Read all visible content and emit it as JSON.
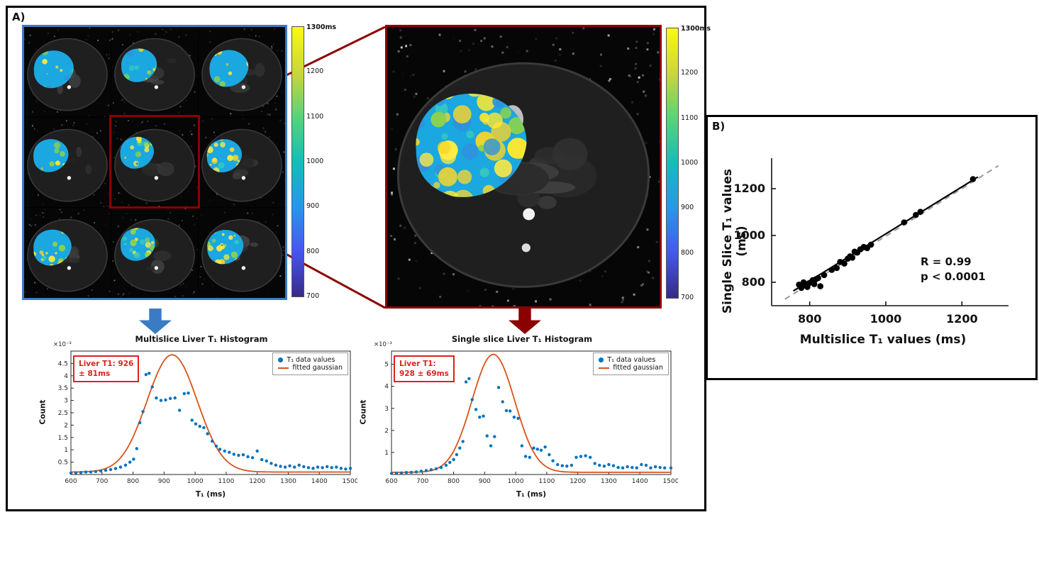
{
  "panelA": {
    "label": "A)",
    "colorbar_multislice": {
      "top_label": "1300ms",
      "ticks": [
        "1200",
        "1100",
        "1000",
        "900",
        "800",
        "700"
      ]
    },
    "colorbar_single": {
      "top_label": "1300ms",
      "ticks": [
        "1200",
        "1100",
        "1000",
        "900",
        "800",
        "700"
      ]
    }
  },
  "panelB": {
    "label": "B)"
  },
  "colors": {
    "histogram_points": "#0072BD",
    "gaussian_curve": "#D95319",
    "annotation_red": "#e02020",
    "multislice_border_blue": "#3b7bc4",
    "highlight_red": "#8b0000",
    "scatter_points": "#000000",
    "identity_line_gray": "#9a9a9a",
    "colorbar_top": "#f9fb0e",
    "colorbar_bottom": "#352a87"
  },
  "chart_data": [
    {
      "id": "multislice_histogram",
      "type": "scatter",
      "title": "Multislice Liver T₁ Histogram",
      "xlabel": "T₁ (ms)",
      "ylabel": "Count",
      "y_scale_label": "×10⁻³",
      "xlim": [
        600,
        1500
      ],
      "ylim": [
        0,
        5.0
      ],
      "xticks": [
        600,
        700,
        800,
        900,
        1000,
        1100,
        1200,
        1300,
        1400,
        1500
      ],
      "yticks": [
        0.5,
        1,
        1.5,
        2,
        2.5,
        3,
        3.5,
        4,
        4.5
      ],
      "grid": false,
      "legend_position": "top-right",
      "legend": [
        "T₁ data values",
        "fitted gaussian"
      ],
      "annotation": {
        "line1": "Liver T1: 926",
        "line2": "± 81ms"
      },
      "gaussian_fit": {
        "mean": 926,
        "sigma": 81,
        "amplitude": 4.75
      },
      "points": [
        [
          600,
          0.06
        ],
        [
          616,
          0.07
        ],
        [
          632,
          0.08
        ],
        [
          648,
          0.1
        ],
        [
          664,
          0.1
        ],
        [
          680,
          0.12
        ],
        [
          696,
          0.14
        ],
        [
          712,
          0.17
        ],
        [
          728,
          0.2
        ],
        [
          744,
          0.24
        ],
        [
          760,
          0.3
        ],
        [
          776,
          0.38
        ],
        [
          790,
          0.5
        ],
        [
          802,
          0.62
        ],
        [
          812,
          1.05
        ],
        [
          822,
          2.1
        ],
        [
          832,
          2.55
        ],
        [
          842,
          4.05
        ],
        [
          852,
          4.1
        ],
        [
          862,
          3.55
        ],
        [
          875,
          3.1
        ],
        [
          890,
          3.0
        ],
        [
          905,
          3.02
        ],
        [
          920,
          3.08
        ],
        [
          935,
          3.1
        ],
        [
          950,
          2.6
        ],
        [
          965,
          3.28
        ],
        [
          978,
          3.3
        ],
        [
          990,
          2.2
        ],
        [
          1002,
          2.05
        ],
        [
          1015,
          1.95
        ],
        [
          1028,
          1.9
        ],
        [
          1040,
          1.65
        ],
        [
          1055,
          1.35
        ],
        [
          1068,
          1.15
        ],
        [
          1080,
          1.02
        ],
        [
          1095,
          0.95
        ],
        [
          1110,
          0.9
        ],
        [
          1125,
          0.82
        ],
        [
          1140,
          0.78
        ],
        [
          1155,
          0.8
        ],
        [
          1170,
          0.72
        ],
        [
          1185,
          0.68
        ],
        [
          1200,
          0.95
        ],
        [
          1215,
          0.6
        ],
        [
          1230,
          0.55
        ],
        [
          1245,
          0.45
        ],
        [
          1260,
          0.38
        ],
        [
          1275,
          0.33
        ],
        [
          1290,
          0.3
        ],
        [
          1305,
          0.35
        ],
        [
          1320,
          0.3
        ],
        [
          1335,
          0.38
        ],
        [
          1350,
          0.32
        ],
        [
          1365,
          0.28
        ],
        [
          1380,
          0.25
        ],
        [
          1395,
          0.3
        ],
        [
          1410,
          0.28
        ],
        [
          1425,
          0.32
        ],
        [
          1440,
          0.28
        ],
        [
          1455,
          0.3
        ],
        [
          1470,
          0.25
        ],
        [
          1485,
          0.22
        ],
        [
          1500,
          0.25
        ]
      ]
    },
    {
      "id": "single_slice_histogram",
      "type": "scatter",
      "title": "Single slice Liver T₁ Histogram",
      "xlabel": "T₁ (ms)",
      "ylabel": "Count",
      "y_scale_label": "×10⁻³",
      "xlim": [
        600,
        1500
      ],
      "ylim": [
        0,
        5.6
      ],
      "xticks": [
        600,
        700,
        800,
        900,
        1000,
        1100,
        1200,
        1300,
        1400,
        1500
      ],
      "yticks": [
        1,
        2,
        3,
        4,
        5
      ],
      "grid": false,
      "legend_position": "top-right",
      "legend": [
        "T₁ data values",
        "fitted gaussian"
      ],
      "annotation": {
        "line1": "Liver T1:",
        "line2": "928 ± 69ms"
      },
      "gaussian_fit": {
        "mean": 928,
        "sigma": 69,
        "amplitude": 5.35
      },
      "points": [
        [
          600,
          0.05
        ],
        [
          616,
          0.06
        ],
        [
          632,
          0.07
        ],
        [
          648,
          0.09
        ],
        [
          664,
          0.1
        ],
        [
          680,
          0.12
        ],
        [
          696,
          0.15
        ],
        [
          712,
          0.18
        ],
        [
          728,
          0.22
        ],
        [
          744,
          0.26
        ],
        [
          760,
          0.32
        ],
        [
          776,
          0.42
        ],
        [
          788,
          0.55
        ],
        [
          800,
          0.68
        ],
        [
          810,
          0.9
        ],
        [
          820,
          1.2
        ],
        [
          830,
          1.5
        ],
        [
          840,
          4.2
        ],
        [
          850,
          4.35
        ],
        [
          860,
          3.4
        ],
        [
          872,
          2.95
        ],
        [
          884,
          2.6
        ],
        [
          896,
          2.65
        ],
        [
          908,
          1.75
        ],
        [
          920,
          1.3
        ],
        [
          932,
          1.72
        ],
        [
          945,
          3.95
        ],
        [
          958,
          3.3
        ],
        [
          970,
          2.9
        ],
        [
          982,
          2.88
        ],
        [
          995,
          2.6
        ],
        [
          1008,
          2.55
        ],
        [
          1020,
          1.3
        ],
        [
          1032,
          0.82
        ],
        [
          1045,
          0.78
        ],
        [
          1058,
          1.2
        ],
        [
          1070,
          1.15
        ],
        [
          1082,
          1.1
        ],
        [
          1095,
          1.25
        ],
        [
          1108,
          0.9
        ],
        [
          1120,
          0.62
        ],
        [
          1135,
          0.45
        ],
        [
          1150,
          0.4
        ],
        [
          1165,
          0.38
        ],
        [
          1180,
          0.42
        ],
        [
          1195,
          0.78
        ],
        [
          1210,
          0.82
        ],
        [
          1225,
          0.85
        ],
        [
          1240,
          0.78
        ],
        [
          1255,
          0.5
        ],
        [
          1270,
          0.42
        ],
        [
          1285,
          0.38
        ],
        [
          1300,
          0.45
        ],
        [
          1315,
          0.4
        ],
        [
          1330,
          0.32
        ],
        [
          1345,
          0.3
        ],
        [
          1360,
          0.35
        ],
        [
          1375,
          0.32
        ],
        [
          1390,
          0.3
        ],
        [
          1405,
          0.45
        ],
        [
          1420,
          0.42
        ],
        [
          1435,
          0.3
        ],
        [
          1450,
          0.35
        ],
        [
          1465,
          0.32
        ],
        [
          1480,
          0.3
        ],
        [
          1500,
          0.3
        ]
      ]
    },
    {
      "id": "correlation_scatter",
      "type": "scatter",
      "title": "",
      "xlabel": "Multislice T₁ values (ms)",
      "ylabel": "Single Slice T₁ values (ms)",
      "xlim": [
        700,
        1300
      ],
      "ylim": [
        700,
        1300
      ],
      "xticks": [
        800,
        1000,
        1200
      ],
      "yticks": [
        800,
        1000,
        1200
      ],
      "grid": false,
      "annotation": {
        "line1": "R = 0.99",
        "line2": "p < 0.0001"
      },
      "fit_line": [
        [
          757,
          763
        ],
        [
          1242,
          1250
        ]
      ],
      "identity_line": [
        [
          735,
          728
        ],
        [
          1296,
          1298
        ]
      ],
      "points": [
        [
          772,
          790
        ],
        [
          778,
          776
        ],
        [
          784,
          800
        ],
        [
          790,
          786
        ],
        [
          794,
          780
        ],
        [
          798,
          796
        ],
        [
          803,
          800
        ],
        [
          808,
          809
        ],
        [
          812,
          792
        ],
        [
          816,
          813
        ],
        [
          822,
          818
        ],
        [
          828,
          783
        ],
        [
          838,
          831
        ],
        [
          858,
          853
        ],
        [
          871,
          861
        ],
        [
          880,
          887
        ],
        [
          891,
          880
        ],
        [
          900,
          901
        ],
        [
          906,
          911
        ],
        [
          912,
          905
        ],
        [
          918,
          931
        ],
        [
          925,
          927
        ],
        [
          933,
          941
        ],
        [
          942,
          951
        ],
        [
          951,
          946
        ],
        [
          961,
          961
        ],
        [
          1048,
          1056
        ],
        [
          1079,
          1088
        ],
        [
          1091,
          1101
        ],
        [
          1229,
          1241
        ]
      ]
    }
  ]
}
